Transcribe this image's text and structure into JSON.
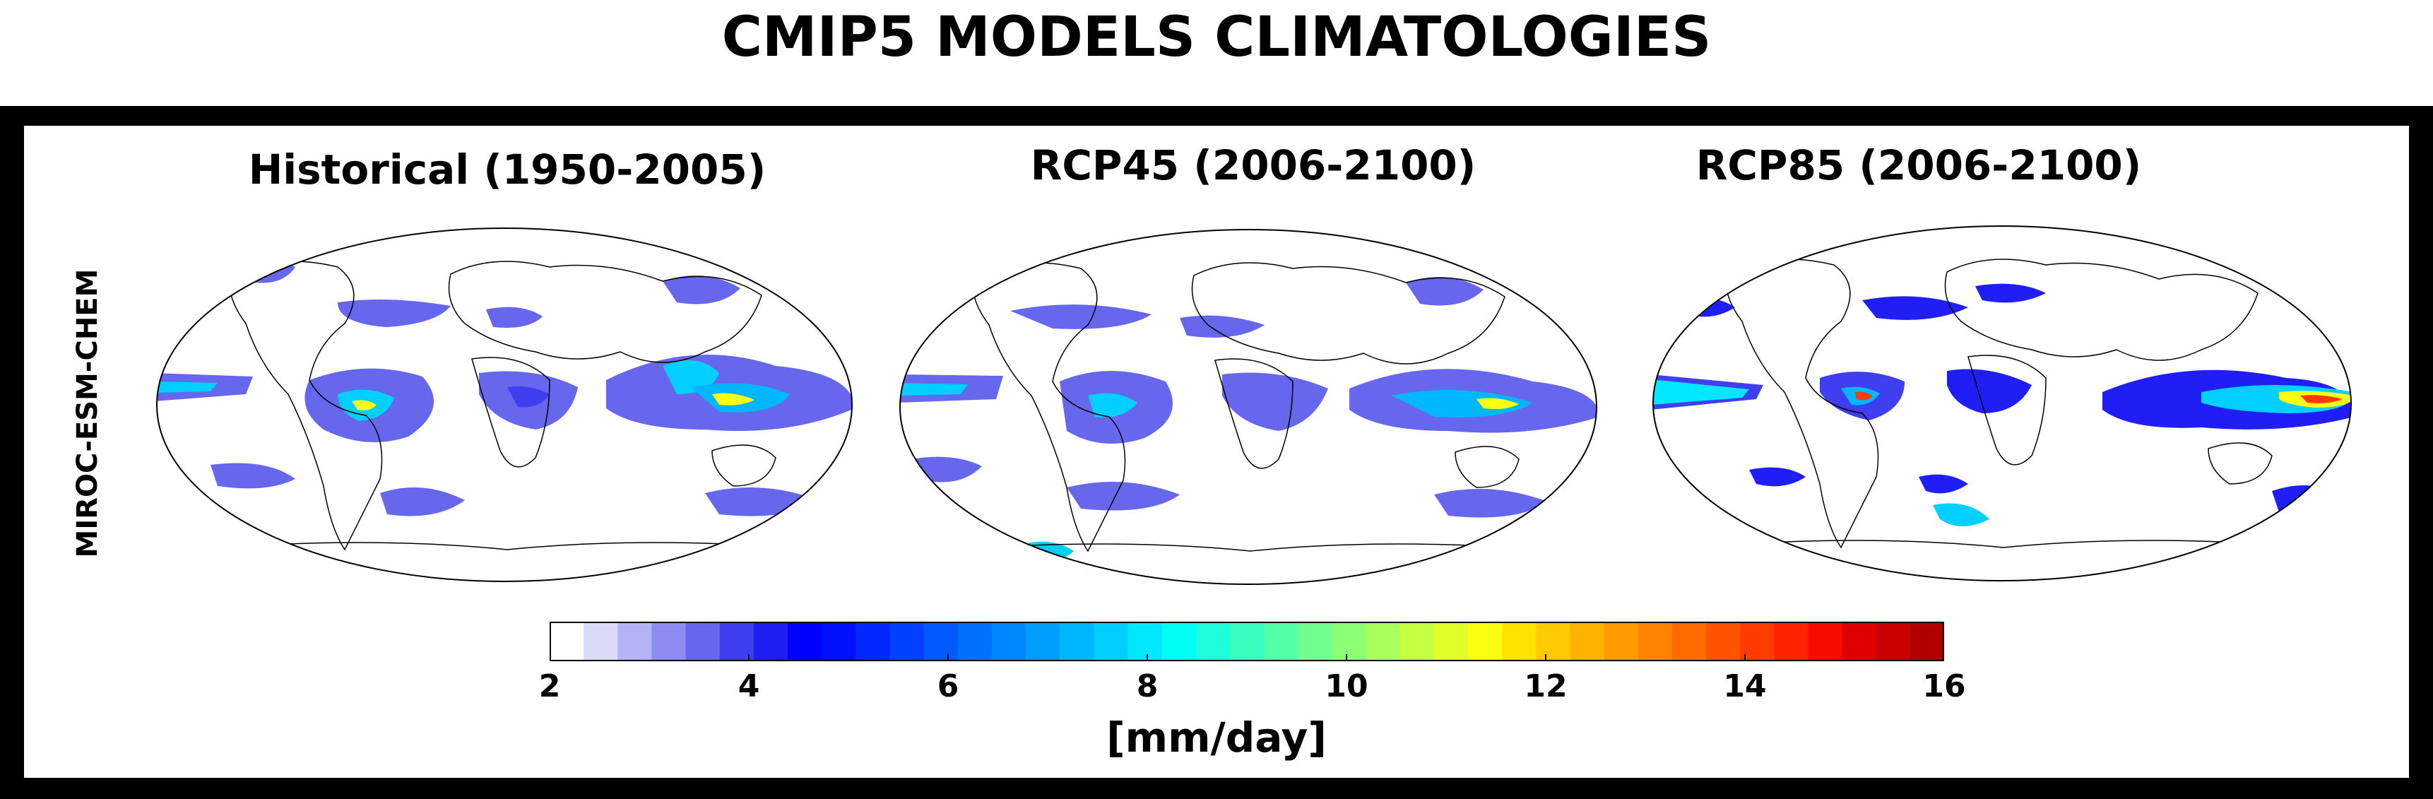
{
  "figure": {
    "title": "CMIP5 MODELS CLIMATOLOGIES",
    "row_label": "MIROC-ESM-CHEM"
  },
  "maps": [
    {
      "title": "Historical (1950-2005)"
    },
    {
      "title": "RCP45 (2006-2100)"
    },
    {
      "title": "RCP85 (2006-2100)"
    }
  ],
  "colorbar": {
    "min": 2,
    "max": 16,
    "ticks": [
      "2",
      "4",
      "6",
      "8",
      "10",
      "12",
      "14",
      "16"
    ],
    "units": "[mm/day]",
    "colormap": "jet",
    "colors": [
      "#ffffff",
      "#dadaf7",
      "#b3b3f5",
      "#8c8cf2",
      "#6767ee",
      "#3f3ff0",
      "#1f1ff5",
      "#0000ff",
      "#0010ff",
      "#0028ff",
      "#0040ff",
      "#0058ff",
      "#0070ff",
      "#0088ff",
      "#009fff",
      "#00b7ff",
      "#00cfff",
      "#00e7ff",
      "#00fff3",
      "#1cffda",
      "#38ffc1",
      "#54ffa7",
      "#70ff8e",
      "#8cff74",
      "#a8ff5b",
      "#c4ff41",
      "#e0ff28",
      "#fcff0f",
      "#ffe300",
      "#ffcb00",
      "#ffb300",
      "#ff9b00",
      "#ff8300",
      "#ff6b00",
      "#ff5300",
      "#ff3b00",
      "#ff2300",
      "#f70b00",
      "#e00000",
      "#c80000",
      "#b00000"
    ]
  }
}
